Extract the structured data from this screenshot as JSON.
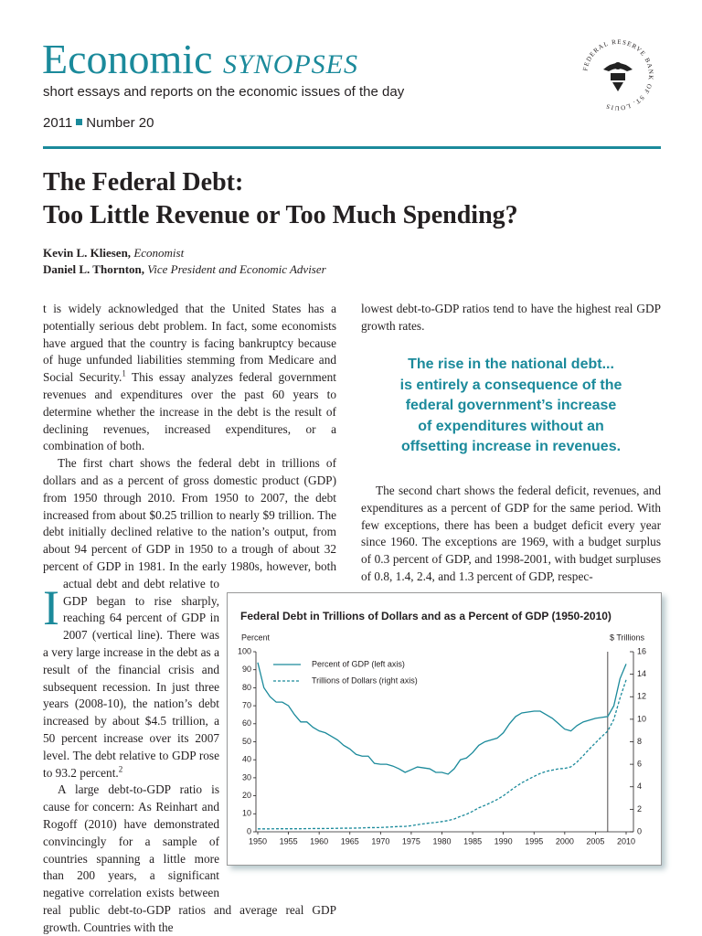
{
  "header": {
    "brand": "Economic",
    "brand_italic": "SYNOPSES",
    "tagline": "short essays and reports on the economic issues of the day",
    "year": "2011",
    "issue": "Number 20",
    "seal": "FEDERAL RESERVE BANK OF ST. LOUIS"
  },
  "article": {
    "title_lines": [
      "The Federal Debt:",
      "Too Little Revenue or Too Much Spending?"
    ],
    "authors": [
      {
        "name": "Kevin L. Kliesen,",
        "role": "Economist"
      },
      {
        "name": "Daniel L. Thornton,",
        "role": "Vice President and Economic Adviser"
      }
    ],
    "drop_cap": "I",
    "left_paragraphs": [
      [
        "t is widely acknowledged that the United States has a potentially serious debt problem. In fact, some economists have argued that the country is facing bankruptcy because of huge unfunded liabilities stemming from Medicare and Social Security.",
        "1",
        " This essay analyzes federal government revenues and expenditures over the past 60 years to determine whether the increase in the debt is the result of declining revenues, increased expenditures, or a combination of both."
      ],
      [
        "The first chart shows the federal debt in trillions of dollars and as a percent of gross domestic product (GDP) from 1950 through 2010. From 1950 to 2007, the debt increased from about $0.25 trillion to nearly $9 trillion. The debt initially declined relative to the nation’s output, from about 94 percent of GDP in 1950 to a trough of about 32 percent of GDP in 1981. In the early 1980s, however, both actual debt and debt relative to GDP began to rise sharply, reaching 64 percent of GDP in 2007 (vertical line). There was a very large increase in the debt as a result of the financial crisis and subsequent recession. In just three years (2008-10), the nation’s debt increased by about $4.5 trillion, a 50 percent increase over its 2007 level. The debt relative to GDP rose to 93.2 percent.",
        "2"
      ],
      [
        "A large debt-to-GDP ratio is cause for concern: As Reinhart and Rogoff (2010) have demonstrated convincingly for a sample of countries spanning a little more than 200 years, a significant negative correlation exists between real public debt-to-GDP ratios and average real GDP growth. Countries with the"
      ]
    ],
    "right_top": "lowest debt-to-GDP ratios tend to have the highest real GDP growth rates.",
    "pull_quote": [
      "The rise in the national debt...",
      "is entirely a consequence of the",
      "federal government’s increase",
      "of expenditures without an",
      "offsetting increase in revenues."
    ],
    "right_bottom": "The second chart shows the federal deficit, revenues, and expenditures as a percent of GDP for the same period. With few exceptions, there has been a budget deficit every year since 1960. The exceptions are 1969, with a budget surplus of 0.3 percent of GDP, and 1998-2001, with budget surpluses of 0.8, 1.4, 2.4, and 1.3 percent of GDP, respec-"
  },
  "chart_data": {
    "type": "line",
    "title": "Federal Debt in Trillions of Dollars and as a Percent of GDP (1950-2010)",
    "ylabel": "Percent",
    "y2label": "$ Trillions",
    "x": [
      1950,
      1951,
      1952,
      1953,
      1954,
      1955,
      1956,
      1957,
      1958,
      1959,
      1960,
      1961,
      1962,
      1963,
      1964,
      1965,
      1966,
      1967,
      1968,
      1969,
      1970,
      1971,
      1972,
      1973,
      1974,
      1975,
      1976,
      1977,
      1978,
      1979,
      1980,
      1981,
      1982,
      1983,
      1984,
      1985,
      1986,
      1987,
      1988,
      1989,
      1990,
      1991,
      1992,
      1993,
      1994,
      1995,
      1996,
      1997,
      1998,
      1999,
      2000,
      2001,
      2002,
      2003,
      2004,
      2005,
      2006,
      2007,
      2008,
      2009,
      2010
    ],
    "series": [
      {
        "name": "Percent of GDP (left axis)",
        "color": "#1b8a9b",
        "dash": false,
        "values": [
          94,
          80,
          75,
          72,
          72,
          70,
          65,
          61,
          61,
          58,
          56,
          55,
          53,
          51,
          48,
          46,
          43,
          42,
          42,
          38,
          37.5,
          37.5,
          36.5,
          35,
          33,
          34.5,
          36,
          35.5,
          35,
          33,
          33,
          32,
          35,
          40,
          41,
          44,
          48,
          50,
          51,
          52,
          55,
          60,
          64,
          66,
          66.5,
          67,
          67,
          65,
          63,
          60,
          57,
          56,
          59,
          61,
          62,
          63,
          63.5,
          64,
          70,
          85,
          93.2
        ]
      },
      {
        "name": "Trillions of Dollars (right axis)",
        "color": "#1b8a9b",
        "dash": true,
        "axis": "y2",
        "values": [
          0.26,
          0.26,
          0.26,
          0.27,
          0.27,
          0.27,
          0.27,
          0.27,
          0.28,
          0.29,
          0.29,
          0.29,
          0.3,
          0.31,
          0.32,
          0.32,
          0.33,
          0.34,
          0.37,
          0.37,
          0.38,
          0.41,
          0.44,
          0.47,
          0.48,
          0.54,
          0.63,
          0.71,
          0.78,
          0.83,
          0.91,
          1.0,
          1.14,
          1.37,
          1.56,
          1.82,
          2.13,
          2.35,
          2.6,
          2.87,
          3.2,
          3.6,
          4.0,
          4.35,
          4.64,
          4.92,
          5.18,
          5.37,
          5.48,
          5.6,
          5.63,
          5.77,
          6.2,
          6.76,
          7.35,
          7.9,
          8.45,
          8.95,
          9.99,
          11.88,
          13.5
        ]
      }
    ],
    "vline_x": 2007,
    "xlim": [
      1950,
      2010
    ],
    "xticks": [
      1950,
      1955,
      1960,
      1965,
      1970,
      1975,
      1980,
      1985,
      1990,
      1995,
      2000,
      2005,
      2010
    ],
    "ylim": [
      0,
      100
    ],
    "yticks": [
      0,
      10,
      20,
      30,
      40,
      50,
      60,
      70,
      80,
      90,
      100
    ],
    "y2lim": [
      0,
      16
    ],
    "y2ticks": [
      0,
      2,
      4,
      6,
      8,
      10,
      12,
      14,
      16
    ],
    "legend": "top-left"
  }
}
